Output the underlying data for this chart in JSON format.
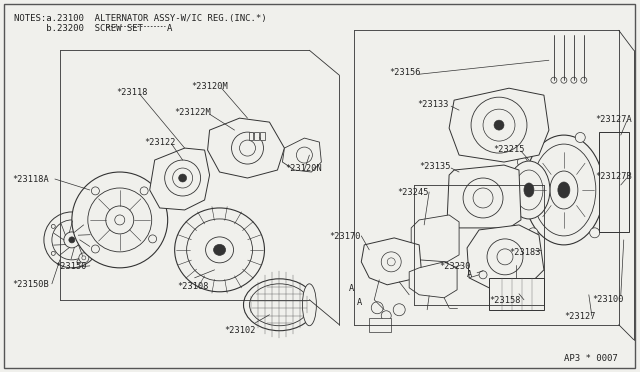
{
  "bg_color": "#f0f0ec",
  "border_color": "#666666",
  "line_color": "#333333",
  "text_color": "#222222",
  "notes_line1": "NOTES:a.23100  ALTERNATOR ASSY-W/IC REG.(INC.*)",
  "notes_line2": "      b.23200  SCREW SET",
  "footer": "AP3 * 0007",
  "figsize": [
    6.4,
    3.72
  ],
  "dpi": 100
}
